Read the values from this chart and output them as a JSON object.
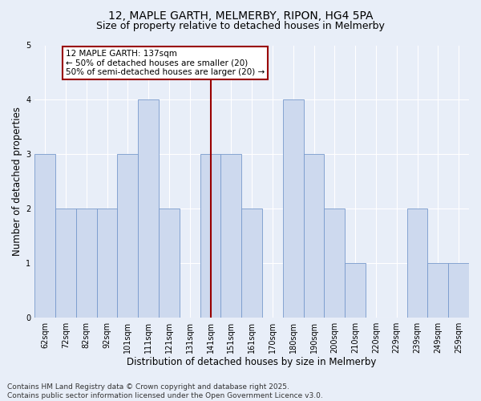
{
  "title": "12, MAPLE GARTH, MELMERBY, RIPON, HG4 5PA",
  "subtitle": "Size of property relative to detached houses in Melmerby",
  "xlabel": "Distribution of detached houses by size in Melmerby",
  "ylabel": "Number of detached properties",
  "footer": "Contains HM Land Registry data © Crown copyright and database right 2025.\nContains public sector information licensed under the Open Government Licence v3.0.",
  "categories": [
    "62sqm",
    "72sqm",
    "82sqm",
    "92sqm",
    "101sqm",
    "111sqm",
    "121sqm",
    "131sqm",
    "141sqm",
    "151sqm",
    "161sqm",
    "170sqm",
    "180sqm",
    "190sqm",
    "200sqm",
    "210sqm",
    "220sqm",
    "229sqm",
    "239sqm",
    "249sqm",
    "259sqm"
  ],
  "values": [
    3,
    2,
    2,
    2,
    3,
    4,
    2,
    0,
    3,
    3,
    2,
    0,
    4,
    3,
    2,
    1,
    0,
    0,
    2,
    1,
    1
  ],
  "bar_color": "#cdd9ee",
  "bar_edge_color": "#7799cc",
  "vline_x_idx": 8,
  "vline_color": "#990000",
  "annotation_text": "12 MAPLE GARTH: 137sqm\n← 50% of detached houses are smaller (20)\n50% of semi-detached houses are larger (20) →",
  "annotation_box_edgecolor": "#990000",
  "annotation_fill_color": "#ffffff",
  "ylim": [
    0,
    5
  ],
  "yticks": [
    0,
    1,
    2,
    3,
    4,
    5
  ],
  "bg_color": "#e8eef8",
  "grid_color": "#ffffff",
  "title_fontsize": 10,
  "subtitle_fontsize": 9,
  "axis_label_fontsize": 8.5,
  "tick_fontsize": 7,
  "footer_fontsize": 6.5,
  "annotation_fontsize": 7.5
}
